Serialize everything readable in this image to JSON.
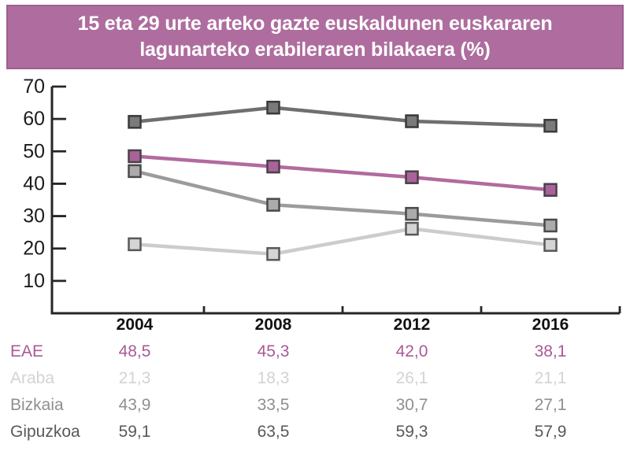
{
  "title": {
    "line1": "15 eta 29 urte arteko gazte euskaldunen euskararen",
    "line2": "lagunarteko erabileraren bilakaera (%)"
  },
  "colors": {
    "banner_bg": "#ae6d9e",
    "banner_border": "#9c6190",
    "banner_text": "#ffffff",
    "axis": "#262626",
    "axis_label": "#1c1c1c",
    "eae": "#b26a9f",
    "araba": "#cdcdcd",
    "bizkaia": "#9b9b9b",
    "gipuzkoa": "#6f6f6f"
  },
  "chart_data": {
    "type": "line",
    "title": "15 eta 29 urte arteko gazte euskaldunen euskararen lagunarteko erabileraren bilakaera (%)",
    "categories": [
      "2004",
      "2008",
      "2012",
      "2016"
    ],
    "series": [
      {
        "name": "EAE",
        "values": [
          48.5,
          45.3,
          42.0,
          38.1
        ],
        "line_color": "#b26a9f",
        "marker_fill": "#a9639b",
        "marker_border": "#4a4148"
      },
      {
        "name": "Araba",
        "values": [
          21.3,
          18.3,
          26.1,
          21.1
        ],
        "line_color": "#cccccc",
        "marker_fill": "#d4d4d4",
        "marker_border": "#585858"
      },
      {
        "name": "Bizkaia",
        "values": [
          43.9,
          33.5,
          30.7,
          27.1
        ],
        "line_color": "#9b9b9b",
        "marker_fill": "#ababab",
        "marker_border": "#4a4a4a"
      },
      {
        "name": "Gipuzkoa",
        "values": [
          59.1,
          63.5,
          59.3,
          57.9
        ],
        "line_color": "#6f6f6f",
        "marker_fill": "#7a7a7a",
        "marker_border": "#3a3a3a"
      }
    ],
    "xlabel": "",
    "ylabel": "",
    "ylim": [
      0,
      70
    ],
    "yticks": [
      10,
      20,
      30,
      40,
      50,
      60,
      70
    ],
    "grid": false,
    "legend": "table-below-chart",
    "marker": "square"
  },
  "table": {
    "columns": [
      "2004",
      "2008",
      "2012",
      "2016"
    ],
    "rows": [
      {
        "label": "EAE",
        "values": [
          "48,5",
          "45,3",
          "42,0",
          "38,1"
        ],
        "color": "#a85a96"
      },
      {
        "label": "Araba",
        "values": [
          "21,3",
          "18,3",
          "26,1",
          "21,1"
        ],
        "color": "#d3d3d3"
      },
      {
        "label": "Bizkaia",
        "values": [
          "43,9",
          "33,5",
          "30,7",
          "27,1"
        ],
        "color": "#8f8f8f"
      },
      {
        "label": "Gipuzkoa",
        "values": [
          "59,1",
          "63,5",
          "59,3",
          "57,9"
        ],
        "color": "#595959"
      }
    ]
  }
}
